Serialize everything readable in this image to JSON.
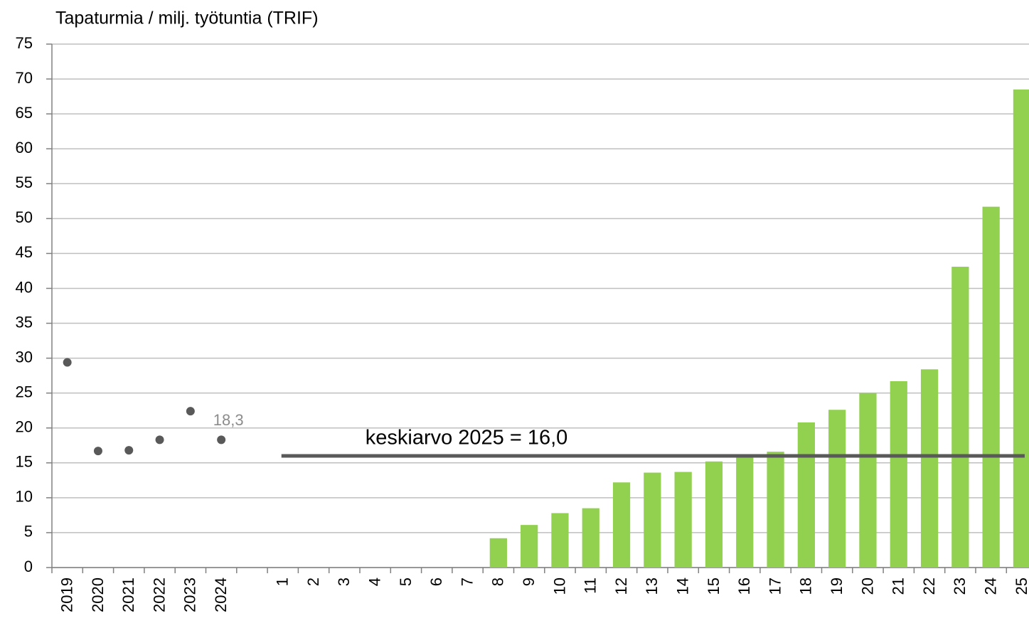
{
  "chart_data": {
    "type": "bar",
    "title": "Tapaturmia / milj. työtuntia (TRIF)",
    "categories": [
      "2019",
      "2020",
      "2021",
      "2022",
      "2023",
      "2024",
      null,
      "1",
      "2",
      "3",
      "4",
      "5",
      "6",
      "7",
      "8",
      "9",
      "10",
      "11",
      "12",
      "13",
      "14",
      "15",
      "16",
      "17",
      "18",
      "19",
      "20",
      "21",
      "22",
      "23",
      "24",
      "25"
    ],
    "series": [
      {
        "type": "scatter",
        "color": "#595959",
        "values": [
          29.4,
          16.7,
          16.8,
          18.3,
          22.4,
          18.3,
          null,
          null,
          null,
          null,
          null,
          null,
          null,
          null,
          null,
          null,
          null,
          null,
          null,
          null,
          null,
          null,
          null,
          null,
          null,
          null,
          null,
          null,
          null,
          null,
          null,
          null
        ],
        "value_labels": [
          null,
          null,
          null,
          null,
          null,
          "18,3",
          null,
          null,
          null,
          null,
          null,
          null,
          null,
          null,
          null,
          null,
          null,
          null,
          null,
          null,
          null,
          null,
          null,
          null,
          null,
          null,
          null,
          null,
          null,
          null,
          null,
          null
        ]
      },
      {
        "type": "bar",
        "color": "#92d050",
        "values": [
          null,
          null,
          null,
          null,
          null,
          null,
          null,
          null,
          null,
          null,
          null,
          null,
          null,
          null,
          4.2,
          6.1,
          7.8,
          8.5,
          12.2,
          13.6,
          13.7,
          15.2,
          16.0,
          16.6,
          20.8,
          22.6,
          25.0,
          26.7,
          28.4,
          43.1,
          51.7,
          68.5
        ]
      }
    ],
    "mean_line": {
      "value": 16.0,
      "label": "keskiarvo 2025 = 16,0",
      "start": "1",
      "end": "25",
      "color": "#595959"
    },
    "ylim": [
      0,
      75
    ],
    "yticks": [
      0,
      5,
      10,
      15,
      20,
      25,
      30,
      35,
      40,
      45,
      50,
      55,
      60,
      65,
      70,
      75
    ],
    "grid": true
  }
}
